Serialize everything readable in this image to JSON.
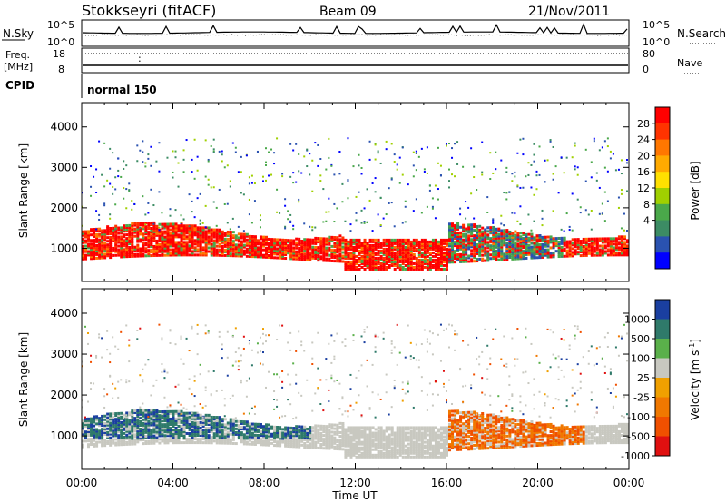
{
  "header": {
    "radar": "Stokkseyri (fitACF)",
    "beam": "Beam 09",
    "date": "21/Nov/2011"
  },
  "noise_panel": {
    "left_label": "N.Sky",
    "right_label": "N.Search",
    "left_ticks": [
      "10^5",
      "10^0"
    ],
    "right_ticks": [
      "10^5",
      "10^0"
    ]
  },
  "freq_panel": {
    "left_label_line1": "Freq.",
    "left_label_line2": "[MHz]",
    "left_ticks": [
      "18",
      "8"
    ],
    "right_ticks": [
      "80",
      "0"
    ],
    "right_label": "Nave"
  },
  "cpid_panel": {
    "label": "CPID",
    "program": "normal 150"
  },
  "chart_data": [
    {
      "type": "heatmap",
      "parameter": "Power",
      "ylabel": "Slant Range [km]",
      "ylim": [
        180,
        4600
      ],
      "yticks": [
        1000,
        2000,
        3000,
        4000
      ],
      "xlabel": "Time UT",
      "xlim_hours": [
        0,
        24
      ],
      "xticks": [
        "00:00",
        "04:00",
        "08:00",
        "12:00",
        "16:00",
        "20:00",
        "00:00"
      ],
      "colorbar": {
        "label": "Power [dB]",
        "ticks": [
          "28",
          "24",
          "20",
          "16",
          "12",
          "8",
          "4"
        ],
        "colors": [
          "#ff0000",
          "#ff3300",
          "#ff7700",
          "#ffaa00",
          "#ffe000",
          "#a0d000",
          "#4aa84a",
          "#3c8c64",
          "#2a52b0",
          "#0000ff"
        ]
      }
    },
    {
      "type": "heatmap",
      "parameter": "Velocity",
      "ylabel": "Slant Range [km]",
      "ylim": [
        180,
        4600
      ],
      "yticks": [
        1000,
        2000,
        3000,
        4000
      ],
      "xlabel": "Time UT",
      "xlim_hours": [
        0,
        24
      ],
      "xticks": [
        "00:00",
        "04:00",
        "08:00",
        "12:00",
        "16:00",
        "20:00",
        "00:00"
      ],
      "colorbar": {
        "label_main": "Velocity",
        "label_units": "[m s",
        "label_exp": "-1",
        "label_close": "]",
        "ticks": [
          "1000",
          "500",
          "100",
          "25",
          "-25",
          "-100",
          "-500",
          "-1000"
        ],
        "colors": [
          "#1a3fa0",
          "#2f7a6a",
          "#5ab04a",
          "#c8c8c0",
          "#f0a000",
          "#f07800",
          "#f05000",
          "#e01010"
        ]
      }
    }
  ]
}
